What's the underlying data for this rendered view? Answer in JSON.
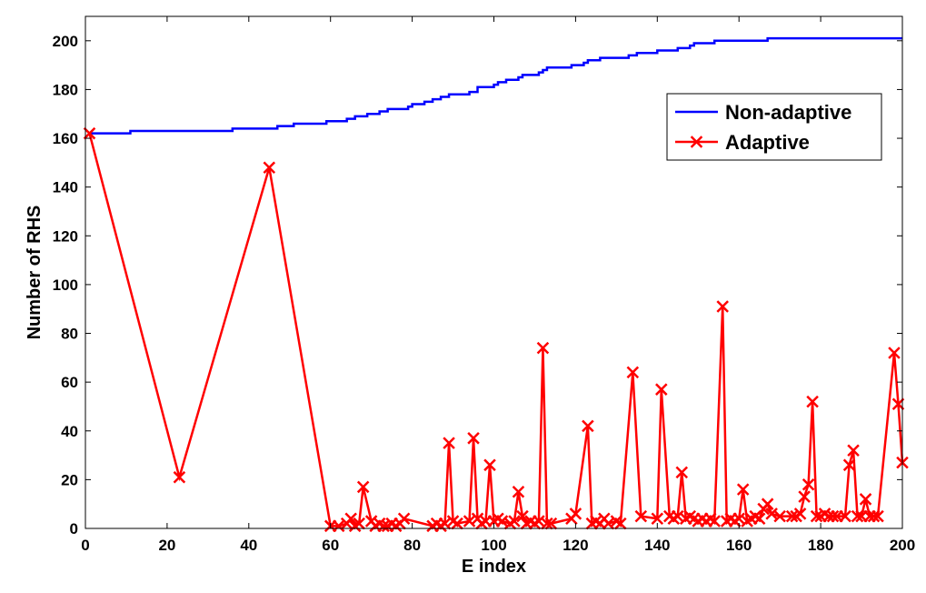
{
  "chart_data": {
    "type": "line",
    "title": "",
    "xlabel": "E index",
    "ylabel": "Number of RHS",
    "xlim": [
      0,
      200
    ],
    "ylim": [
      0,
      210
    ],
    "xticks": [
      0,
      20,
      40,
      60,
      80,
      100,
      120,
      140,
      160,
      180,
      200
    ],
    "yticks": [
      0,
      20,
      40,
      60,
      80,
      100,
      120,
      140,
      160,
      180,
      200
    ],
    "grid": false,
    "legend_position": "top-right",
    "series": [
      {
        "name": "Non-adaptive",
        "color": "#0000ff",
        "marker": "none",
        "step": true,
        "x": [
          1,
          11,
          12,
          36,
          37,
          46,
          47,
          48,
          49,
          50,
          51,
          53,
          59,
          60,
          64,
          65,
          66,
          68,
          69,
          71,
          72,
          73,
          74,
          78,
          79,
          80,
          82,
          83,
          85,
          86,
          87,
          89,
          90,
          91,
          92,
          94,
          95,
          96,
          98,
          99,
          100,
          101,
          102,
          103,
          105,
          106,
          107,
          109,
          110,
          111,
          112,
          113,
          115,
          116,
          117,
          119,
          120,
          122,
          123,
          124,
          125,
          126,
          128,
          131,
          132,
          133,
          134,
          135,
          136,
          139,
          140,
          141,
          142,
          143,
          145,
          146,
          147,
          148,
          149,
          152,
          153,
          154,
          156,
          157,
          158,
          165,
          166,
          167,
          168,
          169,
          170,
          172,
          175,
          177,
          180,
          182,
          183,
          184,
          185,
          200
        ],
        "y": [
          162,
          163,
          163,
          164,
          164,
          164,
          165,
          165,
          165,
          165,
          166,
          166,
          167,
          167,
          168,
          168,
          169,
          169,
          170,
          170,
          171,
          171,
          172,
          172,
          173,
          174,
          174,
          175,
          176,
          176,
          177,
          178,
          178,
          178,
          178,
          179,
          179,
          181,
          181,
          181,
          182,
          183,
          183,
          184,
          184,
          185,
          186,
          186,
          186,
          187,
          188,
          189,
          189,
          189,
          189,
          190,
          190,
          191,
          192,
          192,
          192,
          193,
          193,
          193,
          193,
          194,
          194,
          195,
          195,
          195,
          196,
          196,
          196,
          196,
          197,
          197,
          197,
          198,
          199,
          199,
          199,
          200,
          200,
          200,
          200,
          200,
          200,
          201,
          201,
          201,
          201,
          201,
          201,
          201,
          201,
          201,
          201,
          201,
          201,
          201
        ]
      },
      {
        "name": "Adaptive",
        "color": "#ff0000",
        "marker": "x",
        "x": [
          1,
          23,
          45,
          60,
          62,
          64,
          65,
          66,
          67,
          68,
          70,
          71,
          72,
          73,
          74,
          75,
          76,
          77,
          78,
          85,
          86,
          87,
          88,
          89,
          90,
          91,
          94,
          95,
          96,
          97,
          98,
          99,
          100,
          101,
          102,
          104,
          105,
          106,
          107,
          108,
          109,
          110,
          111,
          112,
          113,
          114,
          119,
          120,
          123,
          124,
          125,
          126,
          127,
          128,
          130,
          131,
          134,
          136,
          140,
          141,
          143,
          144,
          145,
          146,
          147,
          148,
          149,
          150,
          151,
          152,
          153,
          154,
          156,
          157,
          158,
          159,
          160,
          161,
          162,
          163,
          164,
          165,
          166,
          167,
          168,
          170,
          173,
          174,
          175,
          176,
          177,
          178,
          179,
          180,
          181,
          182,
          183,
          184,
          186,
          187,
          188,
          189,
          190,
          191,
          192,
          193,
          194,
          198,
          199,
          200
        ],
        "y": [
          162,
          21,
          148,
          1,
          1,
          2,
          4,
          1,
          2,
          17,
          3,
          1,
          2,
          1,
          1,
          2,
          1,
          2,
          4,
          1,
          2,
          1,
          2,
          35,
          3,
          2,
          3,
          37,
          4,
          2,
          3,
          26,
          3,
          4,
          3,
          2,
          3,
          15,
          5,
          2,
          3,
          2,
          3,
          74,
          2,
          2,
          4,
          6,
          42,
          2,
          3,
          2,
          4,
          2,
          3,
          2,
          64,
          5,
          4,
          57,
          5,
          4,
          5,
          23,
          4,
          5,
          4,
          3,
          4,
          3,
          4,
          3,
          91,
          3,
          4,
          3,
          4,
          16,
          3,
          4,
          5,
          4,
          8,
          10,
          6,
          5,
          5,
          5,
          6,
          13,
          18,
          52,
          5,
          5,
          6,
          5,
          5,
          5,
          5,
          26,
          32,
          5,
          5,
          12,
          5,
          5,
          5,
          72,
          51,
          27
        ]
      }
    ]
  }
}
